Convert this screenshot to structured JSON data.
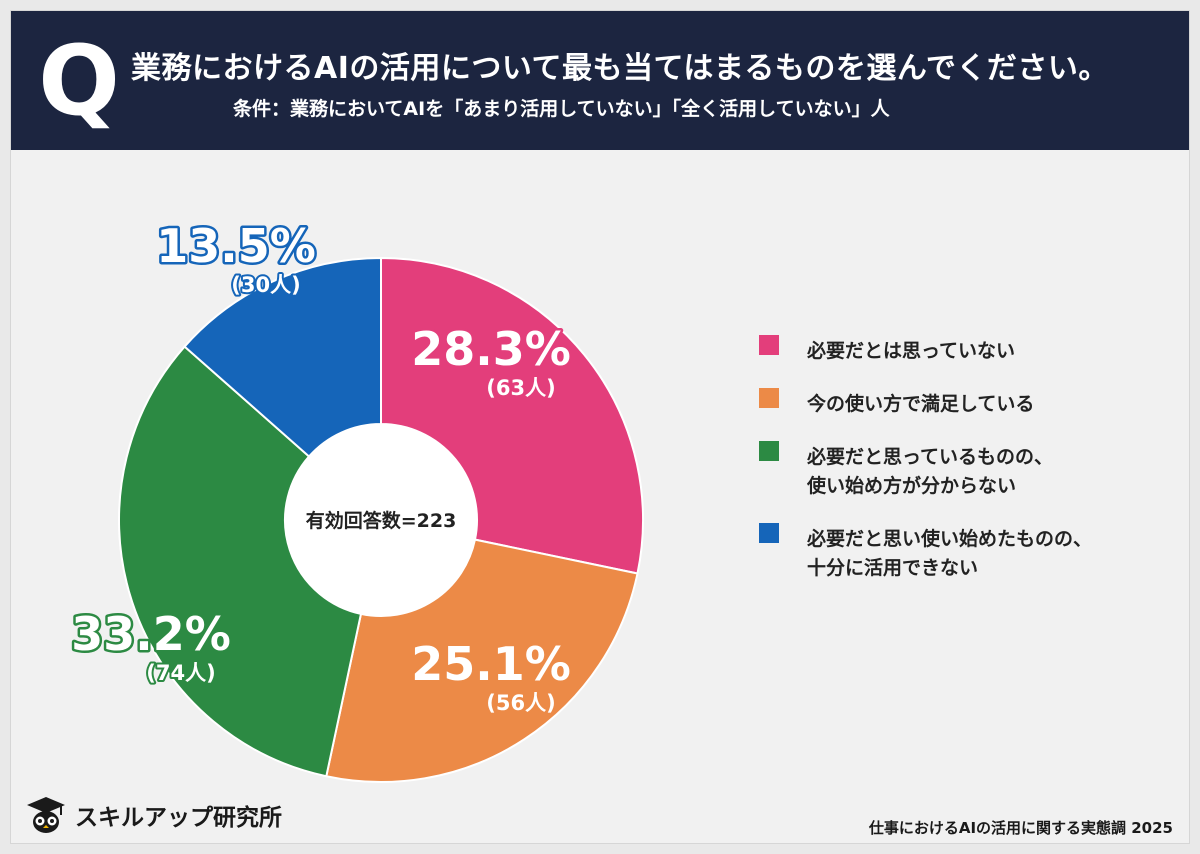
{
  "header": {
    "q_mark": "Q",
    "title": "業務におけるAIの活用について最も当てはまるものを選んでください。",
    "subtitle": "条件：業務においてAIを「あまり活用していない」「全く活用していない」人"
  },
  "colors": {
    "header_bg": "#1c2540",
    "pink": "#e33e7b",
    "orange": "#ec8a47",
    "green": "#2c8a43",
    "blue": "#1565b9"
  },
  "chart_data": {
    "type": "pie",
    "variant": "donut",
    "center_label": "有効回答数=223",
    "legend_position": "right",
    "slices": [
      {
        "label": "必要だとは思っていない",
        "percent": 28.3,
        "percent_text": "28.3%",
        "count_text": "(63人)",
        "color": "#e33e7b"
      },
      {
        "label": "今の使い方で満足している",
        "percent": 25.1,
        "percent_text": "25.1%",
        "count_text": "(56人)",
        "color": "#ec8a47"
      },
      {
        "label": "必要だと思っているものの、\n使い始め方が分からない",
        "percent": 33.2,
        "percent_text": "33.2%",
        "count_text": "(74人)",
        "color": "#2c8a43"
      },
      {
        "label": "必要だと思い使い始めたものの、\n十分に活用できない",
        "percent": 13.5,
        "percent_text": "13.5%",
        "count_text": "(30人)",
        "color": "#1565b9"
      }
    ]
  },
  "legend": {
    "items": [
      {
        "line1": "必要だとは思っていない",
        "line2": ""
      },
      {
        "line1": "今の使い方で満足している",
        "line2": ""
      },
      {
        "line1": "必要だと思っているものの、",
        "line2": "使い始め方が分からない"
      },
      {
        "line1": "必要だと思い使い始めたものの、",
        "line2": "十分に活用できない"
      }
    ]
  },
  "footer": {
    "logo_icon": "owl-graduate-icon",
    "logo_text": "スキルアップ研究所",
    "source": "仕事におけるAIの活用に関する実態調 2025"
  }
}
